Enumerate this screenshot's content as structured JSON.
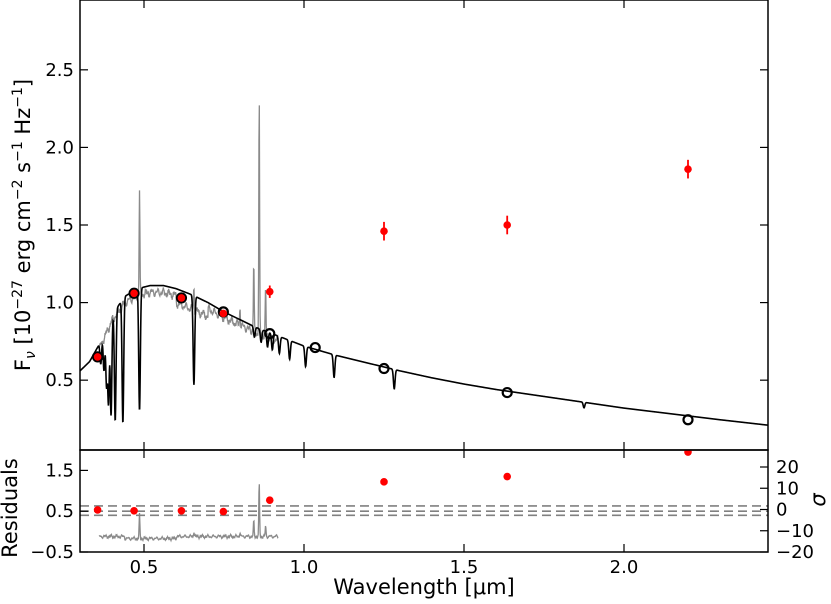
{
  "chart_data": {
    "type": "scatter",
    "xlabel": "Wavelength [μm]",
    "xlim": [
      0.3,
      2.45
    ],
    "x_ticks": [
      0.5,
      1.0,
      1.5,
      2.0
    ],
    "x_tick_labels": [
      "0.5",
      "1.0",
      "1.5",
      "2.0"
    ],
    "top_panel": {
      "ylabel_base": "F",
      "ylabel_sub": "ν",
      "ylabel_rest": " [10",
      "ylabel_exp1": "−27",
      "ylabel_mid": " erg cm",
      "ylabel_exp2": "−2",
      "ylabel_s": " s",
      "ylabel_exp3": "−1",
      "ylabel_hz": " Hz",
      "ylabel_exp4": "−1",
      "ylabel_end": "]",
      "ylim": [
        0.05,
        2.95
      ],
      "y_ticks": [
        0.5,
        1.0,
        1.5,
        2.0,
        2.5
      ],
      "y_tick_labels": [
        "0.5",
        "1.0",
        "1.5",
        "2.0",
        "2.5"
      ],
      "observed_photometry": [
        {
          "x": 0.355,
          "y": 0.65,
          "err": 0.02
        },
        {
          "x": 0.469,
          "y": 1.06,
          "err": 0.02
        },
        {
          "x": 0.617,
          "y": 1.03,
          "err": 0.02
        },
        {
          "x": 0.748,
          "y": 0.93,
          "err": 0.02
        },
        {
          "x": 0.893,
          "y": 1.07,
          "err": 0.04
        },
        {
          "x": 1.25,
          "y": 1.46,
          "err": 0.06
        },
        {
          "x": 1.635,
          "y": 1.5,
          "err": 0.06
        },
        {
          "x": 2.2,
          "y": 1.86,
          "err": 0.06
        }
      ],
      "model_photometry": [
        {
          "x": 0.355,
          "y": 0.65
        },
        {
          "x": 0.469,
          "y": 1.06
        },
        {
          "x": 0.617,
          "y": 1.03
        },
        {
          "x": 0.748,
          "y": 0.94
        },
        {
          "x": 0.893,
          "y": 0.8
        },
        {
          "x": 1.035,
          "y": 0.71
        },
        {
          "x": 1.25,
          "y": 0.575
        },
        {
          "x": 1.635,
          "y": 0.42
        },
        {
          "x": 2.2,
          "y": 0.245
        }
      ],
      "model_spectrum": [
        [
          0.3,
          0.56
        ],
        [
          0.33,
          0.62
        ],
        [
          0.36,
          0.73
        ],
        [
          0.4,
          0.92
        ],
        [
          0.44,
          1.04
        ],
        [
          0.48,
          1.09
        ],
        [
          0.52,
          1.11
        ],
        [
          0.56,
          1.11
        ],
        [
          0.6,
          1.09
        ],
        [
          0.65,
          1.05
        ],
        [
          0.7,
          1.0
        ],
        [
          0.75,
          0.94
        ],
        [
          0.8,
          0.89
        ],
        [
          0.85,
          0.84
        ],
        [
          0.9,
          0.8
        ],
        [
          0.95,
          0.76
        ],
        [
          1.0,
          0.72
        ],
        [
          1.05,
          0.69
        ],
        [
          1.1,
          0.66
        ],
        [
          1.2,
          0.61
        ],
        [
          1.3,
          0.56
        ],
        [
          1.4,
          0.515
        ],
        [
          1.5,
          0.475
        ],
        [
          1.6,
          0.44
        ],
        [
          1.7,
          0.41
        ],
        [
          1.8,
          0.38
        ],
        [
          1.9,
          0.35
        ],
        [
          2.0,
          0.32
        ],
        [
          2.1,
          0.295
        ],
        [
          2.2,
          0.27
        ],
        [
          2.3,
          0.245
        ],
        [
          2.45,
          0.21
        ]
      ],
      "absorption_lines": [
        {
          "x": 0.365,
          "depth": 0.2
        },
        {
          "x": 0.375,
          "depth": 0.3
        },
        {
          "x": 0.383,
          "depth": 0.45
        },
        {
          "x": 0.389,
          "depth": 0.6
        },
        {
          "x": 0.397,
          "depth": 0.7
        },
        {
          "x": 0.41,
          "depth": 0.75
        },
        {
          "x": 0.434,
          "depth": 0.78
        },
        {
          "x": 0.486,
          "depth": 0.72
        },
        {
          "x": 0.656,
          "depth": 0.55
        },
        {
          "x": 0.845,
          "depth": 0.08
        },
        {
          "x": 0.866,
          "depth": 0.1
        },
        {
          "x": 0.886,
          "depth": 0.12
        },
        {
          "x": 0.901,
          "depth": 0.13
        },
        {
          "x": 0.923,
          "depth": 0.14
        },
        {
          "x": 0.955,
          "depth": 0.16
        },
        {
          "x": 1.005,
          "depth": 0.18
        },
        {
          "x": 1.094,
          "depth": 0.22
        },
        {
          "x": 1.282,
          "depth": 0.22
        },
        {
          "x": 1.875,
          "depth": 0.1
        }
      ],
      "observed_spectrum_range": [
        0.36,
        0.92
      ]
    },
    "bottom_panel": {
      "ylabel": "Residuals",
      "ylabel_right": "σ",
      "ylim": [
        -0.5,
        2.0
      ],
      "y_ticks": [
        -0.5,
        0.5,
        1.5
      ],
      "y_tick_labels": [
        "−0.5",
        "0.5",
        "1.5"
      ],
      "right_ticks": [
        -20,
        -10,
        0,
        10,
        20
      ],
      "right_tick_labels": [
        "−20",
        "−10",
        "0",
        "10",
        "20"
      ],
      "right_lim": [
        -20,
        28
      ],
      "residual_points": [
        {
          "x": 0.355,
          "y": 0.53
        },
        {
          "x": 0.469,
          "y": 0.51
        },
        {
          "x": 0.617,
          "y": 0.51
        },
        {
          "x": 0.748,
          "y": 0.49
        },
        {
          "x": 0.893,
          "y": 0.77
        },
        {
          "x": 1.25,
          "y": 1.22
        },
        {
          "x": 1.635,
          "y": 1.35
        },
        {
          "x": 2.2,
          "y": 1.95
        }
      ],
      "reference_lines": [
        0.4,
        0.5,
        0.63
      ]
    }
  }
}
